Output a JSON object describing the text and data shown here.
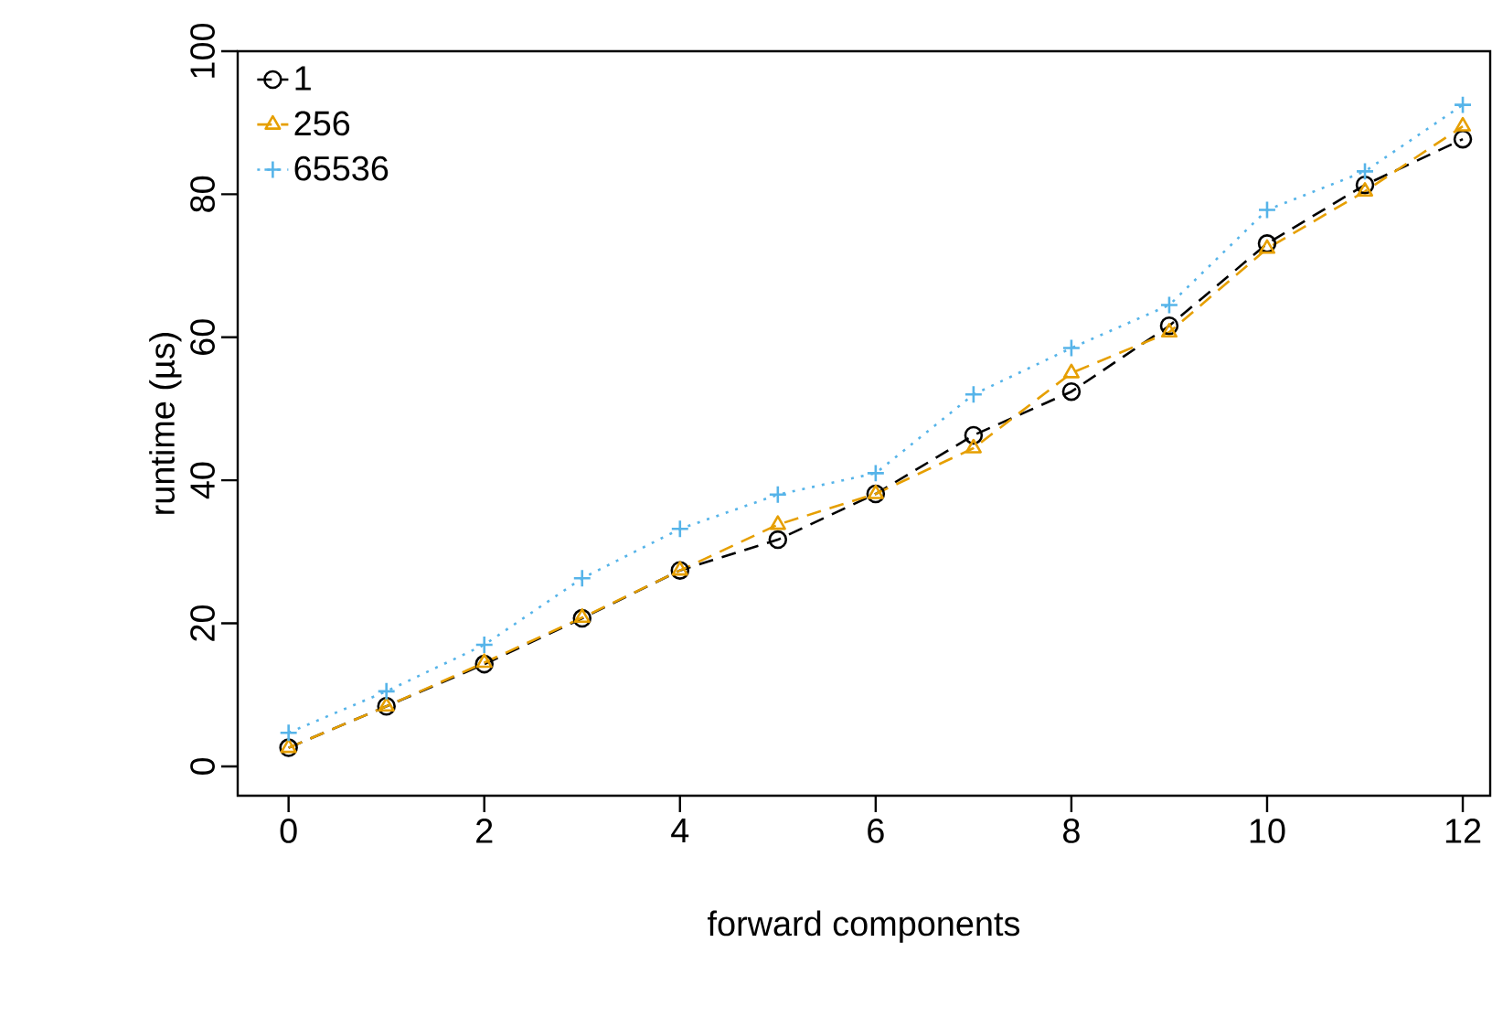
{
  "chart_data": {
    "type": "line",
    "xlabel": "forward components",
    "ylabel": "runtime (µs)",
    "x": [
      0,
      1,
      2,
      3,
      4,
      5,
      6,
      7,
      8,
      9,
      10,
      11,
      12
    ],
    "series": [
      {
        "name": "1",
        "color": "#000000",
        "marker": "circle",
        "line_style": "dashed",
        "values": [
          2.6,
          8.4,
          14.3,
          20.7,
          27.4,
          31.7,
          38.1,
          46.3,
          52.4,
          61.6,
          73.1,
          81.3,
          87.7
        ]
      },
      {
        "name": "256",
        "color": "#e69f00",
        "marker": "triangle",
        "line_style": "dashed",
        "values": [
          2.6,
          8.4,
          14.5,
          20.8,
          27.4,
          33.8,
          38.1,
          44.5,
          55,
          60.7,
          72.4,
          80.4,
          89.5
        ]
      },
      {
        "name": "65536",
        "color": "#56b4e9",
        "marker": "cross",
        "line_style": "dotted",
        "values": [
          4.7,
          10.5,
          17,
          26.3,
          33.2,
          38,
          41,
          52,
          58.5,
          64.5,
          77.8,
          83.2,
          92.5
        ]
      }
    ],
    "xlim": [
      -0.52,
      12.28
    ],
    "ylim": [
      -4.1,
      100
    ],
    "xticks": [
      0,
      2,
      4,
      6,
      8,
      10,
      12
    ],
    "yticks": [
      0,
      20,
      40,
      60,
      80,
      100
    ],
    "grid": false,
    "legend": "top left"
  }
}
